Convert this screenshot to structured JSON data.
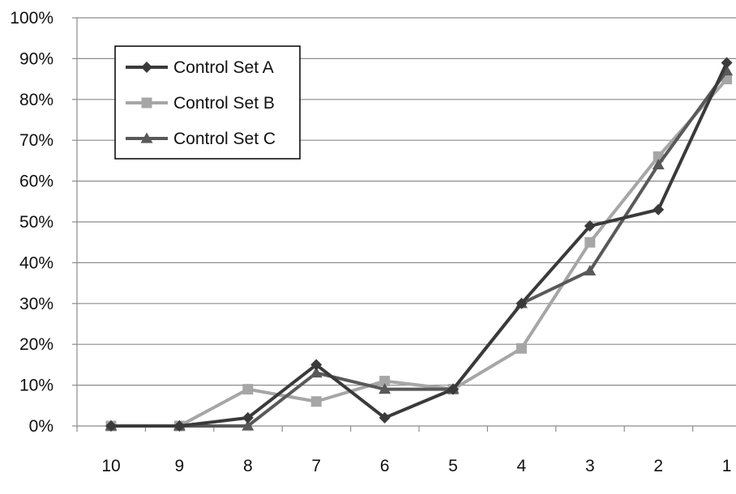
{
  "chart_data": {
    "type": "line",
    "categories": [
      "10",
      "9",
      "8",
      "7",
      "6",
      "5",
      "4",
      "3",
      "2",
      "1"
    ],
    "y_ticks": [
      "0%",
      "10%",
      "20%",
      "30%",
      "40%",
      "50%",
      "60%",
      "70%",
      "80%",
      "90%",
      "100%"
    ],
    "ylim": [
      0,
      100
    ],
    "grid": true,
    "legend_position": "top-left",
    "series": [
      {
        "name": "Control Set A",
        "values": [
          0,
          0,
          2,
          15,
          2,
          9,
          30,
          49,
          53,
          89
        ],
        "color": "#3a3a3a",
        "marker": "diamond"
      },
      {
        "name": "Control Set B",
        "values": [
          0,
          0,
          9,
          6,
          11,
          9,
          19,
          45,
          66,
          85
        ],
        "color": "#a6a6a6",
        "marker": "square"
      },
      {
        "name": "Control Set C",
        "values": [
          0,
          0,
          0,
          13,
          9,
          9,
          30,
          38,
          64,
          87
        ],
        "color": "#595959",
        "marker": "triangle"
      }
    ]
  }
}
